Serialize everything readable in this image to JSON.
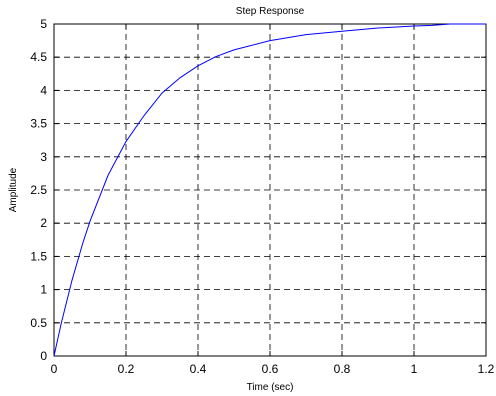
{
  "chart_data": {
    "type": "line",
    "title": "Step Response",
    "xlabel": "Time (sec)",
    "ylabel": "Amplitude",
    "xlim": [
      0,
      1.2
    ],
    "ylim": [
      0,
      5
    ],
    "xticks": [
      "0",
      "0.2",
      "0.4",
      "0.6",
      "0.8",
      "1",
      "1.2"
    ],
    "yticks": [
      "0",
      "0.5",
      "1",
      "1.5",
      "2",
      "2.5",
      "3",
      "3.5",
      "4",
      "4.5",
      "5"
    ],
    "grid": true,
    "grid_style": "dashed",
    "line_color": "#0000ff",
    "series": [
      {
        "x": [
          0,
          0.02,
          0.05,
          0.08,
          0.1,
          0.15,
          0.2,
          0.25,
          0.3,
          0.35,
          0.4,
          0.45,
          0.5,
          0.6,
          0.7,
          0.8,
          0.9,
          1.0,
          1.05,
          1.1,
          1.15,
          1.2
        ],
        "values": [
          0,
          0.49,
          1.14,
          1.7,
          2.03,
          2.72,
          3.23,
          3.62,
          3.96,
          4.19,
          4.37,
          4.51,
          4.61,
          4.75,
          4.84,
          4.89,
          4.94,
          4.97,
          4.98,
          5.0,
          5.0,
          5.0
        ]
      }
    ]
  }
}
